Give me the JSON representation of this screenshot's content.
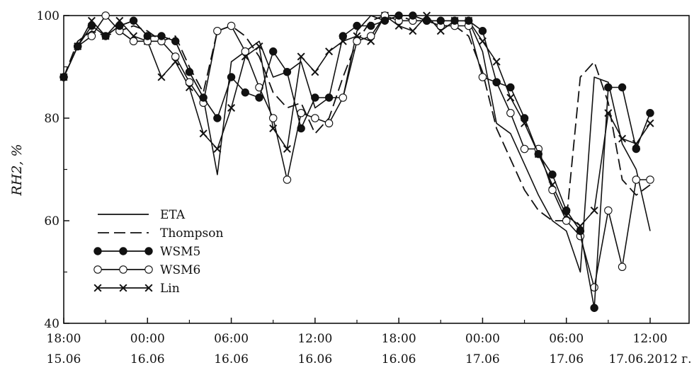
{
  "chart_data": {
    "type": "line",
    "title": "",
    "ylabel": "RH2, %",
    "xlabel": "",
    "ylim": [
      40,
      100
    ],
    "y_ticks": [
      40,
      60,
      80,
      100
    ],
    "x_start": "2012-06-15 18:00",
    "x_end": "2012-06-17 12:00",
    "x_ticks": [
      {
        "time": "2012-06-15 18:00",
        "line1": "18:00",
        "line2": "15.06"
      },
      {
        "time": "2012-06-16 00:00",
        "line1": "00:00",
        "line2": "16.06"
      },
      {
        "time": "2012-06-16 06:00",
        "line1": "06:00",
        "line2": "16.06"
      },
      {
        "time": "2012-06-16 12:00",
        "line1": "12:00",
        "line2": "16.06"
      },
      {
        "time": "2012-06-16 18:00",
        "line1": "18:00",
        "line2": "16.06"
      },
      {
        "time": "2012-06-17 00:00",
        "line1": "00:00",
        "line2": "17.06"
      },
      {
        "time": "2012-06-17 06:00",
        "line1": "06:00",
        "line2": "17.06"
      },
      {
        "time": "2012-06-17 12:00",
        "line1": "12:00",
        "line2": "17.06.2012 г."
      }
    ],
    "grid": false,
    "legend_position": "lower-left",
    "x": [
      "2012-06-15 18:00",
      "2012-06-15 19:00",
      "2012-06-15 20:00",
      "2012-06-15 21:00",
      "2012-06-15 22:00",
      "2012-06-15 23:00",
      "2012-06-16 00:00",
      "2012-06-16 01:00",
      "2012-06-16 02:00",
      "2012-06-16 03:00",
      "2012-06-16 04:00",
      "2012-06-16 05:00",
      "2012-06-16 06:00",
      "2012-06-16 07:00",
      "2012-06-16 08:00",
      "2012-06-16 09:00",
      "2012-06-16 10:00",
      "2012-06-16 11:00",
      "2012-06-16 12:00",
      "2012-06-16 13:00",
      "2012-06-16 14:00",
      "2012-06-16 15:00",
      "2012-06-16 16:00",
      "2012-06-16 17:00",
      "2012-06-16 18:00",
      "2012-06-16 19:00",
      "2012-06-16 20:00",
      "2012-06-16 21:00",
      "2012-06-16 22:00",
      "2012-06-16 23:00",
      "2012-06-17 00:00",
      "2012-06-17 01:00",
      "2012-06-17 02:00",
      "2012-06-17 03:00",
      "2012-06-17 04:00",
      "2012-06-17 05:00",
      "2012-06-17 06:00",
      "2012-06-17 07:00",
      "2012-06-17 08:00",
      "2012-06-17 09:00",
      "2012-06-17 10:00",
      "2012-06-17 11:00",
      "2012-06-17 12:00"
    ],
    "series": [
      {
        "name": "ETA",
        "style": "solid",
        "marker": "none",
        "values": [
          88,
          94,
          99,
          96,
          98,
          99,
          96,
          96,
          95,
          89,
          84,
          69,
          91,
          93,
          95,
          88,
          89,
          91,
          82,
          84,
          84,
          97,
          100,
          99,
          100,
          100,
          99,
          99,
          99,
          99,
          93,
          79,
          77,
          71,
          65,
          60,
          58,
          50,
          88,
          87,
          75,
          70,
          58
        ]
      },
      {
        "name": "Thompson",
        "style": "dashed",
        "marker": "none",
        "values": [
          88,
          95,
          97,
          96,
          97,
          98,
          97,
          95,
          96,
          90,
          85,
          97,
          98,
          96,
          92,
          85,
          82,
          83,
          77,
          80,
          88,
          95,
          99,
          100,
          100,
          99,
          99,
          98,
          98,
          96,
          89,
          78,
          72,
          66,
          62,
          60,
          60,
          88,
          91,
          83,
          68,
          65,
          67
        ]
      },
      {
        "name": "WSM5",
        "style": "solid",
        "marker": "filled-circle",
        "values": [
          88,
          94,
          98,
          96,
          98,
          99,
          96,
          96,
          95,
          89,
          84,
          80,
          88,
          85,
          84,
          93,
          89,
          78,
          84,
          84,
          96,
          98,
          98,
          99,
          100,
          100,
          99,
          99,
          99,
          99,
          97,
          87,
          86,
          80,
          73,
          69,
          62,
          58,
          43,
          86,
          86,
          74,
          81
        ]
      },
      {
        "name": "WSM6",
        "style": "solid",
        "marker": "open-circle",
        "values": [
          88,
          94,
          96,
          100,
          97,
          95,
          95,
          95,
          92,
          87,
          83,
          97,
          98,
          93,
          86,
          80,
          68,
          81,
          80,
          79,
          84,
          95,
          96,
          100,
          99,
          99,
          99,
          98,
          98,
          98,
          88,
          87,
          81,
          74,
          74,
          66,
          60,
          57,
          47,
          62,
          51,
          68,
          68
        ]
      },
      {
        "name": "Lin",
        "style": "solid",
        "marker": "cross",
        "values": [
          88,
          94,
          99,
          96,
          99,
          96,
          95,
          88,
          91,
          86,
          77,
          74,
          82,
          92,
          94,
          78,
          74,
          92,
          89,
          93,
          95,
          96,
          95,
          100,
          98,
          97,
          100,
          97,
          99,
          99,
          95,
          91,
          84,
          79,
          73,
          67,
          61,
          59,
          62,
          81,
          76,
          75,
          79
        ]
      }
    ]
  }
}
